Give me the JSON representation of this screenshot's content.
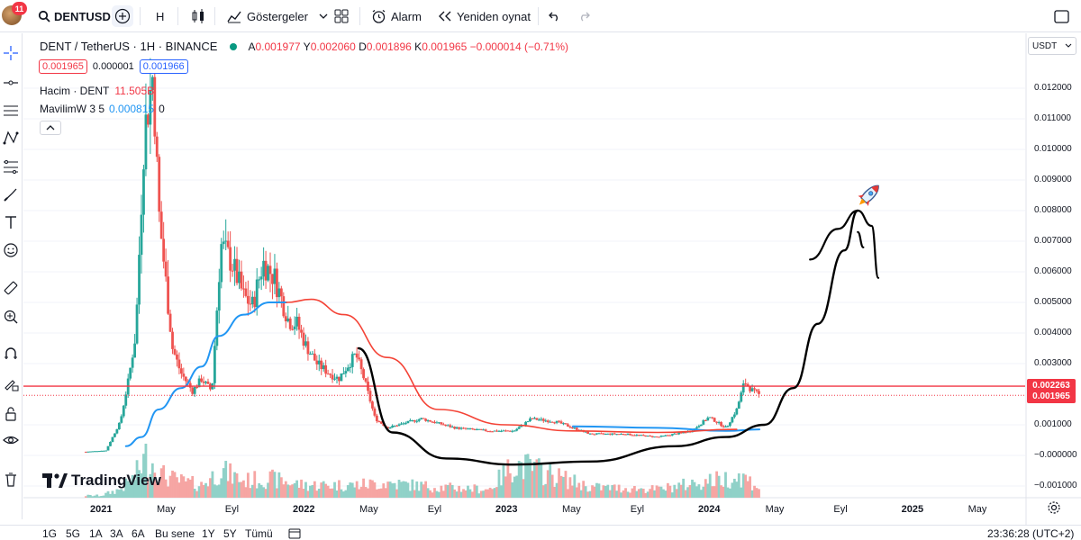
{
  "toolbar": {
    "symbol": "DENTUSD",
    "notification_count": "11",
    "interval": "H",
    "indicators_label": "Göstergeler",
    "alert_label": "Alarm",
    "replay_label": "Yeniden oynat"
  },
  "legend": {
    "title": "DENT / TetherUS · 1H · BINANCE",
    "o_label": "A",
    "o_value": "0.001977",
    "h_label": "Y",
    "h_value": "0.002060",
    "l_label": "D",
    "l_value": "0.001896",
    "c_label": "K",
    "c_value": "0.001965",
    "change": "−0.000014 (−0.71%)",
    "sell_price": "0.001965",
    "spread": "0.000001",
    "buy_price": "0.001966",
    "volume_label": "Hacim · DENT",
    "volume_value": "11.505B",
    "ma_label": "MavilimW 3 5",
    "ma_value": "0.000815",
    "ma_extra": "0"
  },
  "axis": {
    "currency": "USDT",
    "y_ticks": [
      "0.012000",
      "0.011000",
      "0.010000",
      "0.009000",
      "0.008000",
      "0.007000",
      "0.006000",
      "0.005000",
      "0.004000",
      "0.003000",
      "0.001000",
      "−0.000000",
      "−0.001000"
    ],
    "tag_hline": "0.002263",
    "tag_last": "0.001965",
    "x_ticks": [
      {
        "label": "2021",
        "bold": true
      },
      {
        "label": "May",
        "bold": false
      },
      {
        "label": "Eyl",
        "bold": false
      },
      {
        "label": "2022",
        "bold": true
      },
      {
        "label": "May",
        "bold": false
      },
      {
        "label": "Eyl",
        "bold": false
      },
      {
        "label": "2023",
        "bold": true
      },
      {
        "label": "May",
        "bold": false
      },
      {
        "label": "Eyl",
        "bold": false
      },
      {
        "label": "2024",
        "bold": true
      },
      {
        "label": "May",
        "bold": false
      },
      {
        "label": "Eyl",
        "bold": false
      },
      {
        "label": "2025",
        "bold": true
      },
      {
        "label": "May",
        "bold": false
      }
    ]
  },
  "colors": {
    "up": "#26a69a",
    "down": "#ef5350",
    "vol_up": "#90d1c8",
    "vol_down": "#f6a5a3",
    "ma_blue": "#2196f3",
    "ma_red": "#f44336",
    "hline": "#f23645",
    "drawing": "#000000"
  },
  "chart_data": {
    "type": "candlestick",
    "symbol": "DENT / TetherUS",
    "interval": "1H",
    "exchange": "BINANCE",
    "ylim": [
      -0.0015,
      0.0135
    ],
    "x_range": [
      "2020-12",
      "2025-08"
    ],
    "horizontal_line": 0.002263,
    "last_price": 0.001965,
    "ohlc_last": {
      "open": 0.001977,
      "high": 0.00206,
      "low": 0.001896,
      "close": 0.001965
    },
    "price_path": [
      [
        "2020-12-05",
        0.00012
      ],
      [
        "2021-01-10",
        0.00016
      ],
      [
        "2021-02-05",
        0.0011
      ],
      [
        "2021-02-20",
        0.0025
      ],
      [
        "2021-03-05",
        0.004
      ],
      [
        "2021-03-20",
        0.0105
      ],
      [
        "2021-04-05",
        0.0125
      ],
      [
        "2021-04-15",
        0.008
      ],
      [
        "2021-04-25",
        0.0062
      ],
      [
        "2021-05-10",
        0.0035
      ],
      [
        "2021-05-25",
        0.0027
      ],
      [
        "2021-06-15",
        0.0021
      ],
      [
        "2021-07-01",
        0.0025
      ],
      [
        "2021-07-20",
        0.0021
      ],
      [
        "2021-08-05",
        0.0069
      ],
      [
        "2021-08-25",
        0.0063
      ],
      [
        "2021-09-15",
        0.0052
      ],
      [
        "2021-10-01",
        0.0049
      ],
      [
        "2021-10-20",
        0.0063
      ],
      [
        "2021-11-10",
        0.0058
      ],
      [
        "2021-12-05",
        0.0044
      ],
      [
        "2021-12-20",
        0.0043
      ],
      [
        "2022-01-05",
        0.0036
      ],
      [
        "2022-01-25",
        0.003
      ],
      [
        "2022-02-15",
        0.0027
      ],
      [
        "2022-03-05",
        0.0025
      ],
      [
        "2022-03-20",
        0.0029
      ],
      [
        "2022-04-05",
        0.0033
      ],
      [
        "2022-04-20",
        0.0025
      ],
      [
        "2022-05-10",
        0.0012
      ],
      [
        "2022-06-01",
        0.0009
      ],
      [
        "2022-08-01",
        0.0012
      ],
      [
        "2022-10-01",
        0.0009
      ],
      [
        "2022-12-01",
        0.0008
      ],
      [
        "2023-01-15",
        0.0008
      ],
      [
        "2023-02-15",
        0.0012
      ],
      [
        "2023-04-01",
        0.0011
      ],
      [
        "2023-06-01",
        0.0007
      ],
      [
        "2023-08-01",
        0.0007
      ],
      [
        "2023-10-01",
        0.0006
      ],
      [
        "2023-12-01",
        0.0008
      ],
      [
        "2024-01-01",
        0.00125
      ],
      [
        "2024-02-01",
        0.0009
      ],
      [
        "2024-02-20",
        0.0015
      ],
      [
        "2024-03-05",
        0.0024
      ],
      [
        "2024-03-20",
        0.0021
      ],
      [
        "2024-04-01",
        0.001965
      ]
    ],
    "volume_path": [
      [
        "2021-01-01",
        0.05
      ],
      [
        "2021-02-05",
        0.2
      ],
      [
        "2021-03-01",
        0.45
      ],
      [
        "2021-03-25",
        1.0
      ],
      [
        "2021-04-20",
        0.55
      ],
      [
        "2021-05-20",
        0.4
      ],
      [
        "2021-07-01",
        0.3
      ],
      [
        "2021-08-05",
        0.65
      ],
      [
        "2021-09-15",
        0.4
      ],
      [
        "2021-11-01",
        0.45
      ],
      [
        "2022-01-01",
        0.3
      ],
      [
        "2022-04-01",
        0.3
      ],
      [
        "2022-06-01",
        0.35
      ],
      [
        "2022-09-01",
        0.25
      ],
      [
        "2022-12-01",
        0.2
      ],
      [
        "2023-01-15",
        0.8
      ],
      [
        "2023-02-15",
        0.7
      ],
      [
        "2023-06-01",
        0.25
      ],
      [
        "2023-10-01",
        0.2
      ],
      [
        "2024-01-01",
        0.4
      ],
      [
        "2024-03-01",
        0.5
      ],
      [
        "2024-04-01",
        0.25
      ]
    ],
    "ma_blue_path": [
      [
        "2021-02-15",
        0.0003
      ],
      [
        "2021-03-15",
        0.0006
      ],
      [
        "2021-04-15",
        0.0015
      ],
      [
        "2021-05-25",
        0.0022
      ],
      [
        "2021-07-01",
        0.0029
      ],
      [
        "2021-08-01",
        0.0039
      ],
      [
        "2021-09-15",
        0.0046
      ],
      [
        "2021-11-01",
        0.005
      ],
      [
        "2021-12-01",
        0.005
      ]
    ],
    "ma_red_path": [
      [
        "2021-12-01",
        0.005
      ],
      [
        "2022-01-15",
        0.0051
      ],
      [
        "2022-03-15",
        0.0046
      ],
      [
        "2022-06-01",
        0.0032
      ],
      [
        "2022-09-01",
        0.0015
      ],
      [
        "2023-01-01",
        0.001
      ],
      [
        "2023-05-01",
        0.0008
      ],
      [
        "2023-10-01",
        0.00075
      ],
      [
        "2024-02-20",
        0.00085
      ]
    ],
    "ma_blue_tail": [
      [
        "2023-05-01",
        0.00095
      ],
      [
        "2023-10-01",
        0.0009
      ],
      [
        "2024-02-01",
        0.0008
      ],
      [
        "2024-04-01",
        0.00085
      ]
    ],
    "drawing_cup": [
      [
        "2022-04-10",
        0.0035
      ],
      [
        "2022-06-10",
        0.00075
      ],
      [
        "2022-09-15",
        -0.0001
      ],
      [
        "2023-01-15",
        -0.0003
      ],
      [
        "2023-06-01",
        -0.0002
      ],
      [
        "2023-11-01",
        0.0003
      ],
      [
        "2024-02-01",
        0.0006
      ],
      [
        "2024-04-10",
        0.001
      ],
      [
        "2024-06-01",
        0.0022
      ],
      [
        "2024-07-15",
        0.0043
      ],
      [
        "2024-09-01",
        0.0067
      ],
      [
        "2024-09-25",
        0.008
      ]
    ],
    "drawing_arrow": [
      [
        [
          "2024-07-01",
          0.0064
        ],
        [
          "2024-08-20",
          0.0074
        ],
        [
          "2024-09-25",
          0.008
        ],
        [
          "2024-10-20",
          0.0075
        ],
        [
          "2024-11-01",
          0.0058
        ]
      ],
      [
        [
          "2024-09-25",
          0.0073
        ],
        [
          "2024-10-05",
          0.0068
        ]
      ]
    ],
    "rocket_at": [
      "2024-10-15",
      0.0085
    ]
  }
}
